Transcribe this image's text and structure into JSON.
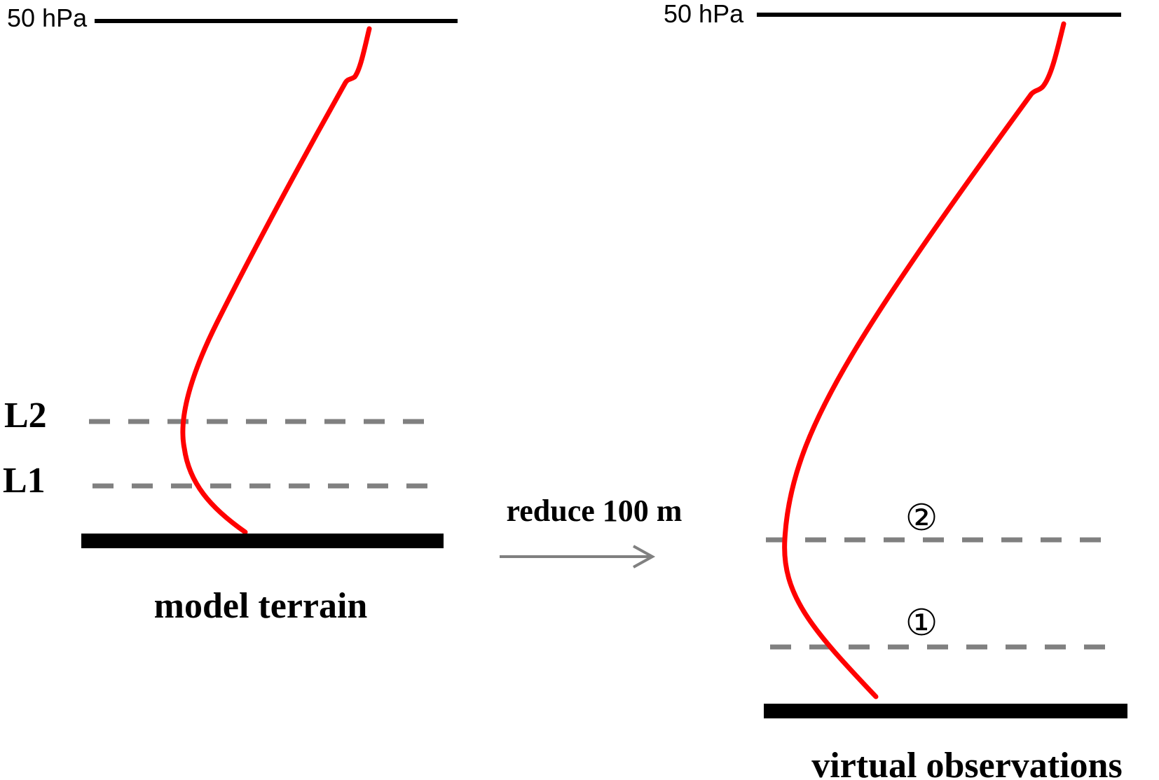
{
  "left_panel": {
    "top_level_label": "50 hPa",
    "level_labels": [
      "L2",
      "L1"
    ],
    "caption": "model terrain"
  },
  "transition": {
    "label": "reduce 100 m"
  },
  "right_panel": {
    "top_level_label": "50 hPa",
    "level_markers": [
      "②",
      "①"
    ],
    "caption": "virtual observations"
  },
  "colors": {
    "profile_curve": "#ff0000",
    "dashed_levels": "#808080",
    "arrow": "#808080",
    "terrain_and_top": "#000000"
  }
}
